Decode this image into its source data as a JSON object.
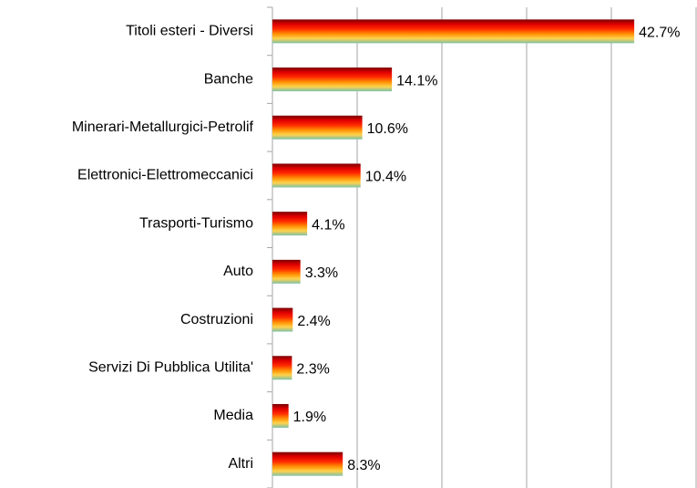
{
  "chart_data": {
    "type": "barh",
    "categories": [
      "Titoli esteri - Diversi",
      "Banche",
      "Minerari-Metallurgici-Petrolif",
      "Elettronici-Elettromeccanici",
      "Trasporti-Turismo",
      "Auto",
      "Costruzioni",
      "Servizi Di Pubblica Utilita'",
      "Media",
      "Altri"
    ],
    "values": [
      42.7,
      14.1,
      10.6,
      10.4,
      4.1,
      3.3,
      2.4,
      2.3,
      1.9,
      8.3
    ],
    "value_labels": [
      "42.7%",
      "14.1%",
      "10.6%",
      "10.4%",
      "4.1%",
      "3.3%",
      "2.4%",
      "2.3%",
      "1.9%",
      "8.3%"
    ],
    "colors": [
      "#7a0000",
      "#e00000",
      "#ff2a00",
      "#ff8c00",
      "#ffd24a",
      "#7fc0a8"
    ],
    "xlim": [
      0,
      50
    ],
    "xticks": [
      0,
      10,
      20,
      30,
      40,
      50
    ],
    "grid": true
  }
}
